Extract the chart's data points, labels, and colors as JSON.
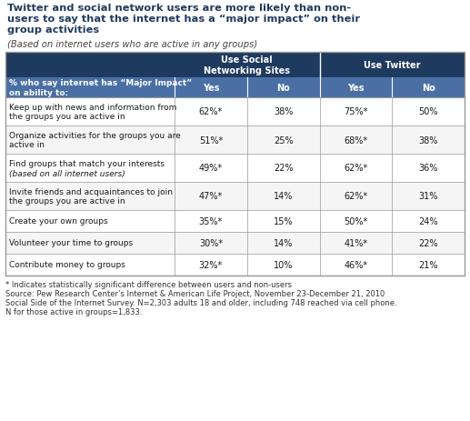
{
  "title_line1": "Twitter and social network users are more likely than non-",
  "title_line2": "users to say that the internet has a “major impact” on their",
  "title_line3": "group activities",
  "subtitle": "(Based on internet users who are active in any groups)",
  "header1": "Use Social\nNetworking Sites",
  "header2": "Use Twitter",
  "subheaders": [
    "Yes",
    "No",
    "Yes",
    "No"
  ],
  "row_label_header": "% who say internet has “Major Impact”\non ability to:",
  "rows": [
    {
      "label": "Keep up with news and information from\nthe groups you are active in",
      "label_italic": false,
      "values": [
        "62%*",
        "38%",
        "75%*",
        "50%"
      ]
    },
    {
      "label": "Organize activities for the groups you are\nactive in",
      "label_italic": false,
      "values": [
        "51%*",
        "25%",
        "68%*",
        "38%"
      ]
    },
    {
      "label": "Find groups that match your interests",
      "label2": "(based on all internet users)",
      "label_italic": true,
      "values": [
        "49%*",
        "22%",
        "62%*",
        "36%"
      ]
    },
    {
      "label": "Invite friends and acquaintances to join\nthe groups you are active in",
      "label_italic": false,
      "values": [
        "47%*",
        "14%",
        "62%*",
        "31%"
      ]
    },
    {
      "label": "Create your own groups",
      "label_italic": false,
      "values": [
        "35%*",
        "15%",
        "50%*",
        "24%"
      ]
    },
    {
      "label": "Volunteer your time to groups",
      "label_italic": false,
      "values": [
        "30%*",
        "14%",
        "41%*",
        "22%"
      ]
    },
    {
      "label": "Contribute money to groups",
      "label_italic": false,
      "values": [
        "32%*",
        "10%",
        "46%*",
        "21%"
      ]
    }
  ],
  "footnote1": "* Indicates statistically significant difference between users and non-users",
  "footnote2": "Source: Pew Research Center’s Internet & American Life Project, November 23-December 21, 2010",
  "footnote3": "Social Side of the Internet Survey. N=2,303 adults 18 and older, including 748 reached via cell phone.",
  "footnote4": "N for those active in groups=1,833.",
  "dark_header_color": "#1e3a5f",
  "medium_header_color": "#4a6fa5",
  "border_color": "#999999",
  "title_color": "#1e3a5f",
  "footnote_color": "#333333"
}
